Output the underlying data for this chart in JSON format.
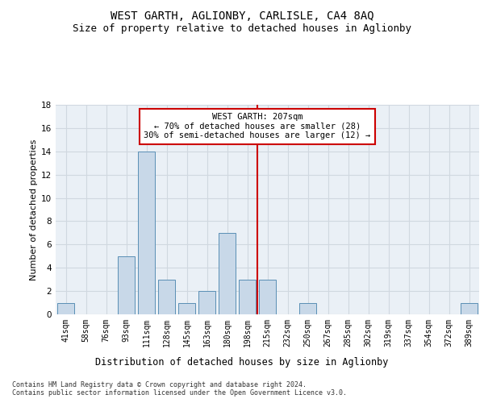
{
  "title1": "WEST GARTH, AGLIONBY, CARLISLE, CA4 8AQ",
  "title2": "Size of property relative to detached houses in Aglionby",
  "xlabel": "Distribution of detached houses by size in Aglionby",
  "ylabel": "Number of detached properties",
  "categories": [
    "41sqm",
    "58sqm",
    "76sqm",
    "93sqm",
    "111sqm",
    "128sqm",
    "145sqm",
    "163sqm",
    "180sqm",
    "198sqm",
    "215sqm",
    "232sqm",
    "250sqm",
    "267sqm",
    "285sqm",
    "302sqm",
    "319sqm",
    "337sqm",
    "354sqm",
    "372sqm",
    "389sqm"
  ],
  "values": [
    1,
    0,
    0,
    5,
    14,
    3,
    1,
    2,
    7,
    3,
    3,
    0,
    1,
    0,
    0,
    0,
    0,
    0,
    0,
    0,
    1
  ],
  "bar_color": "#c8d8e8",
  "bar_edge_color": "#5a8fb5",
  "highlight_line_color": "#cc0000",
  "annotation_text": "WEST GARTH: 207sqm\n← 70% of detached houses are smaller (28)\n30% of semi-detached houses are larger (12) →",
  "annotation_box_color": "#cc0000",
  "ylim": [
    0,
    18
  ],
  "yticks": [
    0,
    2,
    4,
    6,
    8,
    10,
    12,
    14,
    16,
    18
  ],
  "grid_color": "#d0d8e0",
  "background_color": "#eaf0f6",
  "footer_text": "Contains HM Land Registry data © Crown copyright and database right 2024.\nContains public sector information licensed under the Open Government Licence v3.0.",
  "title1_fontsize": 10,
  "title2_fontsize": 9,
  "ylabel_fontsize": 8,
  "tick_fontsize": 7,
  "annotation_fontsize": 7.5,
  "xlabel_fontsize": 8.5,
  "footer_fontsize": 6
}
